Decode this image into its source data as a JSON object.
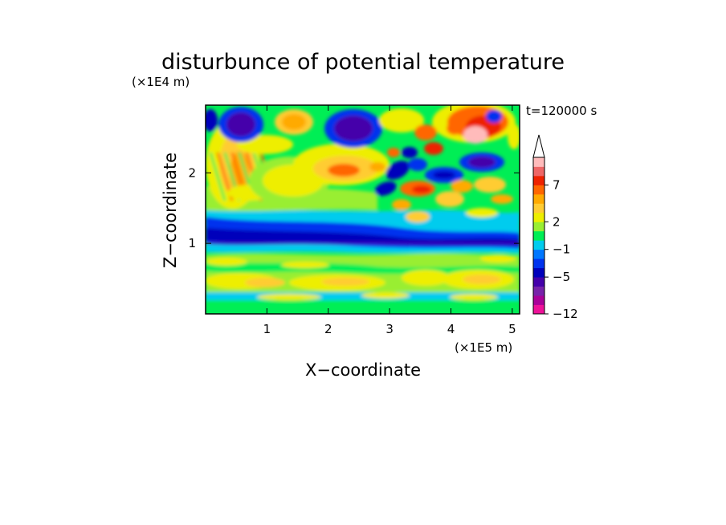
{
  "chart_data": {
    "type": "heatmap",
    "title": "disturbunce of potential temperature",
    "xlabel": "X−coordinate",
    "ylabel": "Z−coordinate",
    "x_unit": "(×1E5 m)",
    "y_unit": "(×1E4 m)",
    "time_label": "t=120000 s",
    "xlim": [
      0,
      5.12
    ],
    "ylim": [
      0,
      2.96
    ],
    "x_ticks": [
      1,
      2,
      3,
      4,
      5
    ],
    "y_ticks": [
      1,
      2
    ],
    "colorbar": {
      "levels": [
        -12,
        -10,
        -8,
        -6,
        -5,
        -4,
        -3,
        -1,
        0,
        1,
        2,
        3,
        5,
        6,
        7,
        8,
        9
      ],
      "tick_labels": [
        "−12",
        "−5",
        "−1",
        "2",
        "7"
      ],
      "tick_values": [
        -12,
        -5,
        -1,
        2,
        7
      ],
      "colors": [
        "#ee1199",
        "#aa0099",
        "#7722aa",
        "#4400aa",
        "#0000bb",
        "#0033ee",
        "#0077ff",
        "#00ccee",
        "#00ee55",
        "#99ee33",
        "#eeee00",
        "#ffcc33",
        "#ffaa00",
        "#ff6600",
        "#ee2200",
        "#ee6666",
        "#ffbbbb"
      ],
      "extend": "max"
    }
  }
}
